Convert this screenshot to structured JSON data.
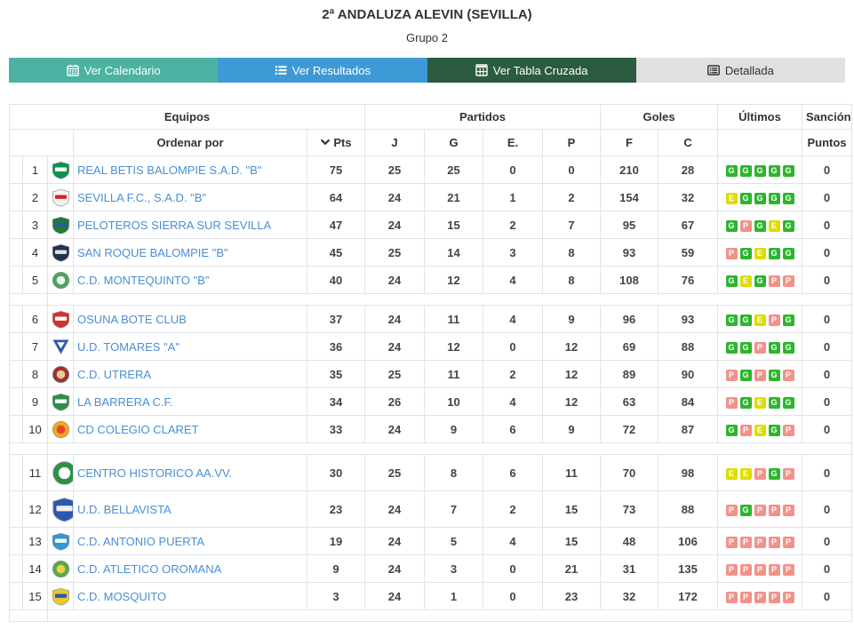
{
  "header": {
    "title": "2ª ANDALUZA ALEVIN (SEVILLA)",
    "subtitle": "Grupo 2"
  },
  "tabs": [
    {
      "label": "Ver Calendario",
      "icon": "calendar-icon",
      "bg": "#4cb2a2",
      "fg": "#ffffff"
    },
    {
      "label": "Ver Resultados",
      "icon": "list-icon",
      "bg": "#3e9ad6",
      "fg": "#ffffff"
    },
    {
      "label": "Ver Tabla Cruzada",
      "icon": "table-grid-icon",
      "bg": "#2b5b40",
      "fg": "#ffffff"
    },
    {
      "label": "Detallada",
      "icon": "detail-list-icon",
      "bg": "#e0e0e0",
      "fg": "#333333"
    }
  ],
  "colors": {
    "link": "#4a8fd3",
    "border": "#dfe4e9",
    "badge_win": "#2db52d",
    "badge_draw": "#dddd00",
    "badge_loss": "#f2918c"
  },
  "table": {
    "headers": {
      "equipos": "Equipos",
      "partidos": "Partidos",
      "goles": "Goles",
      "ultimos": "Últimos",
      "sancion": "Sanción",
      "ordenar_por": "Ordenar por",
      "pts": "Pts",
      "j": "J",
      "g": "G",
      "e": "E.",
      "p": "P",
      "f": "F",
      "c": "C",
      "puntos": "Puntos"
    },
    "group_breaks": [
      5,
      10,
      15
    ],
    "rows": [
      {
        "pos": 1,
        "team": "REAL BETIS BALOMPIE S.A.D. \"B\"",
        "pts": 75,
        "j": 25,
        "g": 25,
        "e": 0,
        "p": 0,
        "f": 210,
        "c": 28,
        "ultimos": [
          "G",
          "G",
          "G",
          "G",
          "G"
        ],
        "sancion": 0,
        "crest": {
          "shape": "shield",
          "c1": "#0c9447",
          "c2": "#ffffff"
        }
      },
      {
        "pos": 2,
        "team": "SEVILLA F.C., S.A.D. \"B\"",
        "pts": 64,
        "j": 24,
        "g": 21,
        "e": 1,
        "p": 2,
        "f": 154,
        "c": 32,
        "ultimos": [
          "E",
          "G",
          "G",
          "G",
          "G"
        ],
        "sancion": 0,
        "crest": {
          "shape": "shield",
          "c1": "#f6f4ee",
          "c2": "#d6202f"
        }
      },
      {
        "pos": 3,
        "team": "PELOTEROS SIERRA SUR SEVILLA",
        "pts": 47,
        "j": 24,
        "g": 15,
        "e": 2,
        "p": 7,
        "f": 95,
        "c": 67,
        "ultimos": [
          "G",
          "P",
          "G",
          "E",
          "G"
        ],
        "sancion": 0,
        "crest": {
          "shape": "shield",
          "c1": "#1f7a33",
          "c2": "#2b58b0"
        }
      },
      {
        "pos": 4,
        "team": "SAN ROQUE BALOMPIE \"B\"",
        "pts": 45,
        "j": 25,
        "g": 14,
        "e": 3,
        "p": 8,
        "f": 93,
        "c": 59,
        "ultimos": [
          "P",
          "G",
          "E",
          "G",
          "G"
        ],
        "sancion": 0,
        "crest": {
          "shape": "shield",
          "c1": "#20324f",
          "c2": "#dfe3e4"
        }
      },
      {
        "pos": 5,
        "team": "C.D. MONTEQUINTO \"B\"",
        "pts": 40,
        "j": 24,
        "g": 12,
        "e": 4,
        "p": 8,
        "f": 108,
        "c": 76,
        "ultimos": [
          "G",
          "E",
          "G",
          "P",
          "P"
        ],
        "sancion": 0,
        "crest": {
          "shape": "circle",
          "c1": "#4ea45c",
          "c2": "#eef5ee"
        }
      },
      {
        "pos": 6,
        "team": "OSUNA BOTE CLUB",
        "pts": 37,
        "j": 24,
        "g": 11,
        "e": 4,
        "p": 9,
        "f": 96,
        "c": 93,
        "ultimos": [
          "G",
          "G",
          "E",
          "P",
          "G"
        ],
        "sancion": 0,
        "crest": {
          "shape": "shield",
          "c1": "#d2332e",
          "c2": "#ffffff"
        }
      },
      {
        "pos": 7,
        "team": "U.D. TOMARES \"A\"",
        "pts": 36,
        "j": 24,
        "g": 12,
        "e": 0,
        "p": 12,
        "f": 69,
        "c": 88,
        "ultimos": [
          "G",
          "G",
          "P",
          "G",
          "G"
        ],
        "sancion": 0,
        "crest": {
          "shape": "triangle",
          "c1": "#2b58b0",
          "c2": "#ffffff"
        }
      },
      {
        "pos": 8,
        "team": "C.D. UTRERA",
        "pts": 35,
        "j": 25,
        "g": 11,
        "e": 2,
        "p": 12,
        "f": 89,
        "c": 90,
        "ultimos": [
          "P",
          "G",
          "P",
          "G",
          "P"
        ],
        "sancion": 0,
        "crest": {
          "shape": "circle",
          "c1": "#a3302c",
          "c2": "#e8c9a0"
        }
      },
      {
        "pos": 9,
        "team": "LA BARRERA C.F.",
        "pts": 34,
        "j": 26,
        "g": 10,
        "e": 4,
        "p": 12,
        "f": 63,
        "c": 84,
        "ultimos": [
          "P",
          "G",
          "E",
          "G",
          "G"
        ],
        "sancion": 0,
        "crest": {
          "shape": "shield",
          "c1": "#2f8f46",
          "c2": "#ffffff"
        }
      },
      {
        "pos": 10,
        "team": "CD COLEGIO CLARET",
        "pts": 33,
        "j": 24,
        "g": 9,
        "e": 6,
        "p": 9,
        "f": 72,
        "c": 87,
        "ultimos": [
          "G",
          "P",
          "E",
          "G",
          "P"
        ],
        "sancion": 0,
        "crest": {
          "shape": "circle",
          "c1": "#f0a81c",
          "c2": "#e8442c"
        }
      },
      {
        "pos": 11,
        "team": "CENTRO HISTORICO AA.VV.",
        "pts": 30,
        "j": 25,
        "g": 8,
        "e": 6,
        "p": 11,
        "f": 70,
        "c": 98,
        "ultimos": [
          "E",
          "E",
          "P",
          "G",
          "P"
        ],
        "sancion": 0,
        "crest": {
          "shape": "circle",
          "c1": "#2f8f46",
          "c2": "#ffffff",
          "size": "lg"
        }
      },
      {
        "pos": 12,
        "team": "U.D. BELLAVISTA",
        "pts": 23,
        "j": 24,
        "g": 7,
        "e": 2,
        "p": 15,
        "f": 73,
        "c": 88,
        "ultimos": [
          "P",
          "G",
          "P",
          "P",
          "P"
        ],
        "sancion": 0,
        "crest": {
          "shape": "shield",
          "c1": "#2b58b0",
          "c2": "#f3f0e8",
          "size": "lg"
        }
      },
      {
        "pos": 13,
        "team": "C.D. ANTONIO PUERTA",
        "pts": 19,
        "j": 24,
        "g": 5,
        "e": 4,
        "p": 15,
        "f": 48,
        "c": 106,
        "ultimos": [
          "P",
          "P",
          "P",
          "P",
          "P"
        ],
        "sancion": 0,
        "crest": {
          "shape": "shield",
          "c1": "#2f9ad0",
          "c2": "#ffffff"
        }
      },
      {
        "pos": 14,
        "team": "C.D. ATLETICO OROMANA",
        "pts": 9,
        "j": 24,
        "g": 3,
        "e": 0,
        "p": 21,
        "f": 31,
        "c": 135,
        "ultimos": [
          "P",
          "P",
          "P",
          "P",
          "P"
        ],
        "sancion": 0,
        "crest": {
          "shape": "circle",
          "c1": "#58a84f",
          "c2": "#f2d23c"
        }
      },
      {
        "pos": 15,
        "team": "C.D. MOSQUITO",
        "pts": 3,
        "j": 24,
        "g": 1,
        "e": 0,
        "p": 23,
        "f": 32,
        "c": 172,
        "ultimos": [
          "P",
          "P",
          "P",
          "P",
          "P"
        ],
        "sancion": 0,
        "crest": {
          "shape": "shield",
          "c1": "#e8c830",
          "c2": "#2b58b0"
        }
      }
    ]
  }
}
